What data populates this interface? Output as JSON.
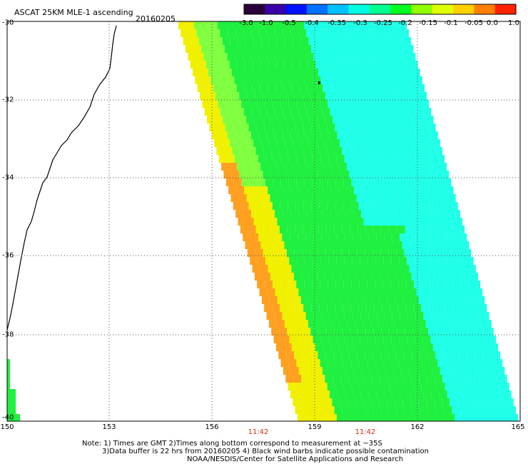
{
  "header": {
    "title": "ASCAT 25KM MLE-1 ascending",
    "date": "20160205"
  },
  "colorbar": {
    "tick_labels": [
      "-3.0",
      "-1.0",
      "-0.5",
      "-0.4",
      "-0.35",
      "-0.3",
      "-0.25",
      "-0.2",
      "-0.15",
      "-0.1",
      "-0.05",
      "0.0",
      "1.0"
    ],
    "colors": [
      "#2a0038",
      "#3a00a8",
      "#0010ff",
      "#0070ff",
      "#00c0ff",
      "#00ffe0",
      "#00ff90",
      "#00ff20",
      "#90ff00",
      "#e0ff00",
      "#ffd000",
      "#ff8000",
      "#ff2000"
    ]
  },
  "map": {
    "lat_labels": [
      "-30",
      "-32",
      "-34",
      "-36",
      "-38",
      "-40"
    ],
    "lon_labels": [
      "150",
      "153",
      "156",
      "159",
      "162",
      "165"
    ],
    "time_labels": [
      "11:42",
      "11:42"
    ],
    "swath_colors": {
      "edge": "#ffa020",
      "yellow": "#f0f000",
      "green": "#20f040",
      "cyan": "#20ffe8",
      "lightgreen": "#80ff40"
    }
  },
  "notes": {
    "line1": "Note: 1) Times are GMT 2)Times along bottom correspond to measurement at ~35S",
    "line2": "3)Data buffer is 22 hrs from 20160205 4) Black wind barbs indicate possible contamination",
    "line3": "NOAA/NESDIS/Center for Satellite Applications and Research"
  }
}
